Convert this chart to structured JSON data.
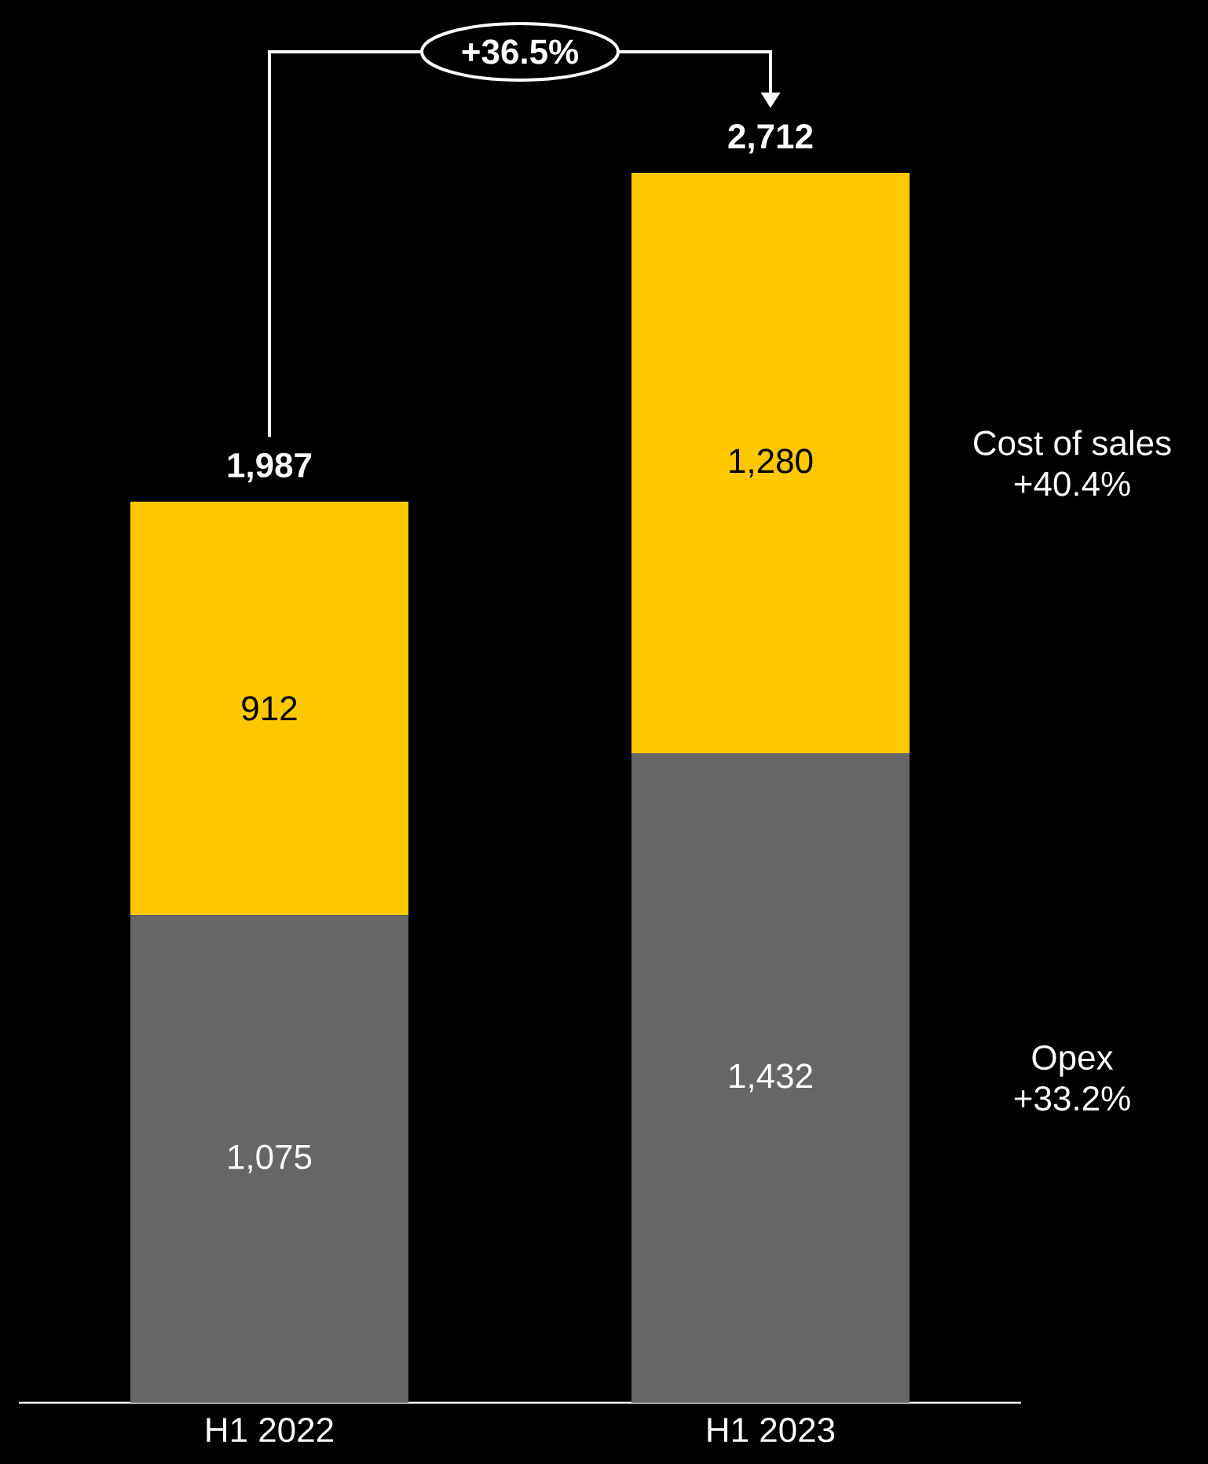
{
  "chart_data": {
    "type": "bar",
    "stacked": true,
    "categories": [
      "H1 2022",
      "H1 2023"
    ],
    "series": [
      {
        "name": "Opex",
        "color": "#666666",
        "values": [
          1075,
          1432
        ],
        "value_labels": [
          "1,075",
          "1,432"
        ]
      },
      {
        "name": "Cost of sales",
        "color": "#ffc800",
        "values": [
          912,
          1280
        ],
        "value_labels": [
          "912",
          "1,280"
        ]
      }
    ],
    "totals": [
      "1,987",
      "2,712"
    ],
    "annotations": [
      "+36.5%",
      "+33.2%",
      "+40.4%"
    ]
  }
}
